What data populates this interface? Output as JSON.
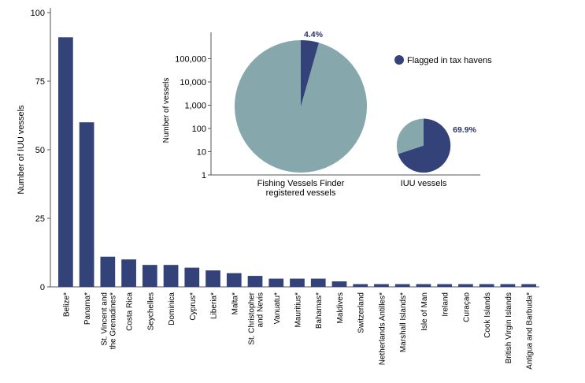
{
  "colors": {
    "bar": "#34427a",
    "pie_other": "#86a8ad",
    "pie_haven": "#34427a",
    "axis": "#555555",
    "text": "#000000",
    "label_dark": "#2b3566"
  },
  "chart_data": [
    {
      "type": "bar",
      "title": "",
      "xlabel": "",
      "ylabel": "Number of IUU vessels",
      "ylim": [
        0,
        100
      ],
      "yticks": [
        "0",
        "25",
        "50",
        "75",
        "100"
      ],
      "grid": false,
      "categories": [
        "Belize*",
        "Panama*",
        "St. Vincent and\nthe Grenadines*",
        "Costa Rica",
        "Seychelles",
        "Dominica",
        "Cyprus*",
        "Liberia*",
        "Malta*",
        "St. Christopher\nand Nevis",
        "Vanuatu*",
        "Mauritius*",
        "Bahamas*",
        "Maldives",
        "Switzerland",
        "Netherlands Antilles*",
        "Marshall Islands*",
        "Isle of Man",
        "Ireland",
        "Curaçao",
        "Cook Islands",
        "British Virgin Islands",
        "Antigua and Barbuda*"
      ],
      "values": [
        91,
        60,
        11,
        10,
        8,
        8,
        7,
        6,
        5,
        4,
        3,
        3,
        3,
        2,
        1,
        1,
        1,
        1,
        1,
        1,
        1,
        1,
        1
      ]
    },
    {
      "type": "pie",
      "ylabel": "Number of vessels",
      "yscale": "log",
      "ylim": [
        1,
        1000000
      ],
      "yticks": [
        "1",
        "10",
        "100",
        "1,000",
        "10,000",
        "100,000"
      ],
      "legend": {
        "label": "Flagged in tax havens",
        "placement": "top-right"
      },
      "pies": [
        {
          "category": "Fishing Vessels Finder\nregistered vessels",
          "total": 650000,
          "tax_haven_share": 4.4,
          "share_label": "4.4%"
        },
        {
          "category": "IUU vessels",
          "total": 231,
          "tax_haven_share": 69.9,
          "share_label": "69.9%"
        }
      ]
    }
  ]
}
